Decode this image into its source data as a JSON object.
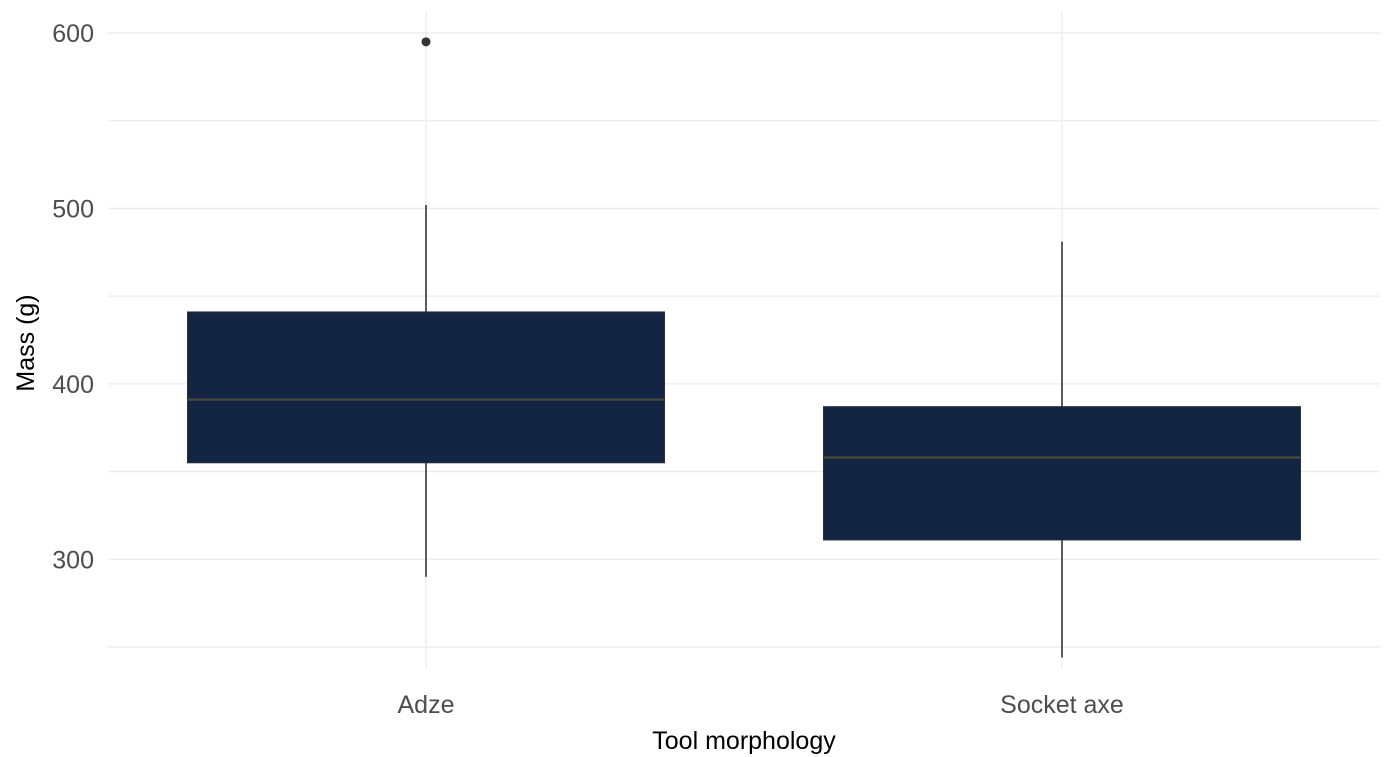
{
  "chart_data": {
    "type": "box",
    "xlabel": "Tool morphology",
    "ylabel": "Mass (g)",
    "ylim": [
      238,
      612
    ],
    "yticks": [
      300,
      400,
      500,
      600
    ],
    "ytick_labels": [
      "300",
      "400",
      "500",
      "600"
    ],
    "grid": true,
    "categories": [
      "Adze",
      "Socket axe"
    ],
    "boxes": [
      {
        "category": "Adze",
        "whisker_low": 290,
        "q1": 355,
        "median": 391,
        "q3": 441,
        "whisker_high": 502,
        "outliers": [
          595
        ]
      },
      {
        "category": "Socket axe",
        "whisker_low": 244,
        "q1": 311,
        "median": 358,
        "q3": 387,
        "whisker_high": 481,
        "outliers": []
      }
    ],
    "colors": {
      "box_fill": "#132542",
      "median_line": "#4a4a3a",
      "whisker": "#1a1a1a",
      "grid": "#ebebeb",
      "outlier": "#333333"
    }
  }
}
